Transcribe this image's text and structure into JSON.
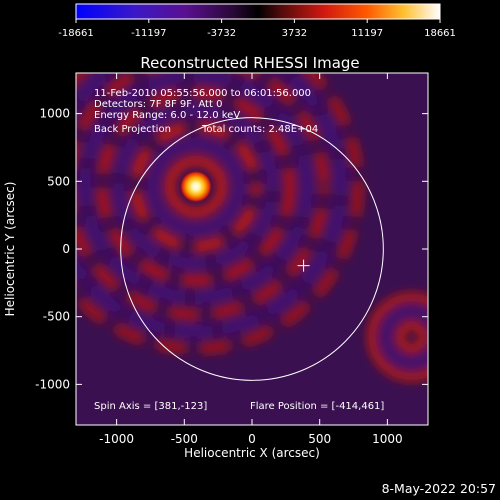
{
  "chart_data": {
    "type": "heatmap",
    "title": "Reconstructed RHESSI Image",
    "xlabel": "Heliocentric X (arcsec)",
    "ylabel": "Heliocentric Y (arcsec)",
    "xlim": [
      -1300,
      1300
    ],
    "ylim": [
      -1300,
      1300
    ],
    "x_ticks": [
      -1000,
      -500,
      0,
      500,
      1000
    ],
    "y_ticks": [
      1000,
      500,
      0,
      -500,
      -1000
    ],
    "colorbar": {
      "min": -18661,
      "max": 18661,
      "tick_labels": [
        "-18661",
        "-11197",
        "-3732",
        "3732",
        "11197",
        "18661"
      ]
    },
    "solar_limb_radius": 970,
    "spin_axis": [
      381,
      -123
    ],
    "flare_position": [
      -414,
      461
    ],
    "annotations": [
      "11-Feb-2010 05:55:56.000 to 06:01:56.000",
      "Detectors: 7F 8F 9F, Att 0",
      "Energy Range: 6.0 - 12.0 keV",
      "Back Projection",
      "Total counts: 2.48E+04"
    ],
    "footer": {
      "spin_axis_text": "Spin Axis = [381,-123]",
      "flare_position_text": "Flare Position = [-414,461]"
    },
    "colors": [
      "#0000ff",
      "#5a10a0",
      "#3a1050",
      "#000000",
      "#7a1010",
      "#e02010",
      "#ff7a00",
      "#ffe060",
      "#ffffff"
    ]
  },
  "date_stamp": "8-May-2022 20:57"
}
